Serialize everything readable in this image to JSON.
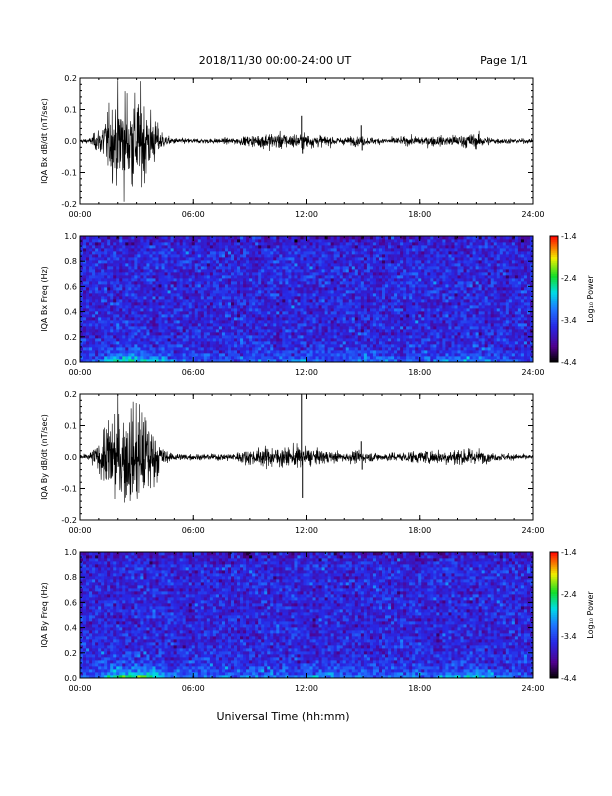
{
  "header": {
    "title": "2018/11/30   00:00-24:00 UT",
    "page": "Page 1/1"
  },
  "footer": {
    "xlabel": "Universal Time (hh:mm)"
  },
  "chart_data": [
    {
      "type": "line",
      "ylabel": "IQA Bx dB/dt (nT/sec)",
      "ylim": [
        -0.2,
        0.2
      ],
      "yticks": [
        "-0.2",
        "-0.1",
        "0.0",
        "0.1",
        "0.2"
      ],
      "xlim": [
        0,
        24
      ],
      "xticks": [
        "00:00",
        "06:00",
        "12:00",
        "18:00",
        "24:00"
      ],
      "envelope": {
        "hours": [
          0,
          0.5,
          1.0,
          1.5,
          2.0,
          2.5,
          3.0,
          3.5,
          4.0,
          4.5,
          5,
          6,
          7,
          8,
          9,
          10,
          11,
          11.5,
          12,
          12.5,
          13,
          14,
          14.9,
          15.2,
          16,
          17,
          18,
          19,
          20,
          21,
          22,
          23,
          24
        ],
        "amplitude": [
          0.01,
          0.01,
          0.05,
          0.12,
          0.18,
          0.2,
          0.19,
          0.16,
          0.08,
          0.02,
          0.012,
          0.01,
          0.01,
          0.012,
          0.02,
          0.035,
          0.03,
          0.03,
          0.03,
          0.025,
          0.02,
          0.015,
          0.02,
          0.015,
          0.012,
          0.015,
          0.02,
          0.02,
          0.025,
          0.03,
          0.012,
          0.01,
          0.008
        ]
      },
      "spikes": [
        {
          "hour": 11.75,
          "value": 0.08
        },
        {
          "hour": 11.8,
          "value": -0.04
        },
        {
          "hour": 14.9,
          "value": 0.05
        },
        {
          "hour": 14.95,
          "value": -0.03
        }
      ]
    },
    {
      "type": "heatmap",
      "ylabel": "IQA Bx Freq (Hz)",
      "ylim": [
        0.0,
        1.0
      ],
      "yticks": [
        "0.0",
        "0.2",
        "0.4",
        "0.6",
        "0.8",
        "1.0"
      ],
      "xlim": [
        0,
        24
      ],
      "xticks": [
        "00:00",
        "06:00",
        "12:00",
        "18:00",
        "24:00"
      ],
      "colorbar": {
        "label": "Log₁₀ Power",
        "range": [
          -4.4,
          -1.4
        ],
        "ticks": [
          "-1.4",
          "-2.4",
          "-3.4",
          "-4.4"
        ]
      },
      "background_log_power": -3.6,
      "low_freq_enhancement": {
        "hours": [
          0,
          1,
          1.5,
          2.5,
          3.5,
          4.2,
          5,
          8,
          10,
          12,
          14,
          16,
          18,
          20,
          21,
          22,
          23,
          24
        ],
        "log_power": [
          -3.4,
          -3.2,
          -2.6,
          -2.4,
          -2.5,
          -2.7,
          -3.2,
          -3.3,
          -3.1,
          -3.1,
          -3.2,
          -3.2,
          -3.2,
          -3.0,
          -2.9,
          -3.1,
          -3.3,
          -3.4
        ]
      }
    },
    {
      "type": "line",
      "ylabel": "IQA By dB/dt (nT/sec)",
      "ylim": [
        -0.2,
        0.2
      ],
      "yticks": [
        "-0.2",
        "-0.1",
        "0.0",
        "0.1",
        "0.2"
      ],
      "xlim": [
        0,
        24
      ],
      "xticks": [
        "00:00",
        "06:00",
        "12:00",
        "18:00",
        "24:00"
      ],
      "envelope": {
        "hours": [
          0,
          0.5,
          1.0,
          1.5,
          2.0,
          2.5,
          3.0,
          3.5,
          4.0,
          4.5,
          5,
          6,
          7,
          8,
          9,
          10,
          11,
          11.5,
          12,
          12.5,
          13,
          14,
          14.9,
          15.2,
          16,
          17,
          18,
          19,
          20,
          21,
          22,
          23,
          24
        ],
        "amplitude": [
          0.01,
          0.015,
          0.06,
          0.15,
          0.2,
          0.2,
          0.2,
          0.18,
          0.1,
          0.025,
          0.015,
          0.012,
          0.012,
          0.015,
          0.03,
          0.04,
          0.04,
          0.045,
          0.04,
          0.03,
          0.025,
          0.02,
          0.025,
          0.02,
          0.015,
          0.02,
          0.025,
          0.03,
          0.035,
          0.03,
          0.015,
          0.012,
          0.01
        ]
      },
      "spikes": [
        {
          "hour": 11.75,
          "value": 0.2
        },
        {
          "hour": 11.8,
          "value": -0.13
        },
        {
          "hour": 14.9,
          "value": 0.05
        },
        {
          "hour": 14.95,
          "value": -0.04
        }
      ]
    },
    {
      "type": "heatmap",
      "ylabel": "IQA By Freq (Hz)",
      "ylim": [
        0.0,
        1.0
      ],
      "yticks": [
        "0.0",
        "0.2",
        "0.4",
        "0.6",
        "0.8",
        "1.0"
      ],
      "xlim": [
        0,
        24
      ],
      "xticks": [
        "00:00",
        "06:00",
        "12:00",
        "18:00",
        "24:00"
      ],
      "colorbar": {
        "label": "Log₁₀ Power",
        "range": [
          -4.4,
          -1.4
        ],
        "ticks": [
          "-1.4",
          "-2.4",
          "-3.4",
          "-4.4"
        ]
      },
      "background_log_power": -3.6,
      "low_freq_enhancement": {
        "hours": [
          0,
          1,
          1.5,
          2.5,
          3.5,
          4.2,
          5,
          8,
          10,
          12,
          14,
          16,
          18,
          20,
          21,
          22,
          23,
          24
        ],
        "log_power": [
          -3.3,
          -3.0,
          -2.4,
          -2.2,
          -2.3,
          -2.5,
          -3.1,
          -3.2,
          -3.0,
          -3.0,
          -3.1,
          -3.1,
          -3.0,
          -2.8,
          -2.6,
          -2.9,
          -3.2,
          -3.3
        ]
      }
    }
  ]
}
